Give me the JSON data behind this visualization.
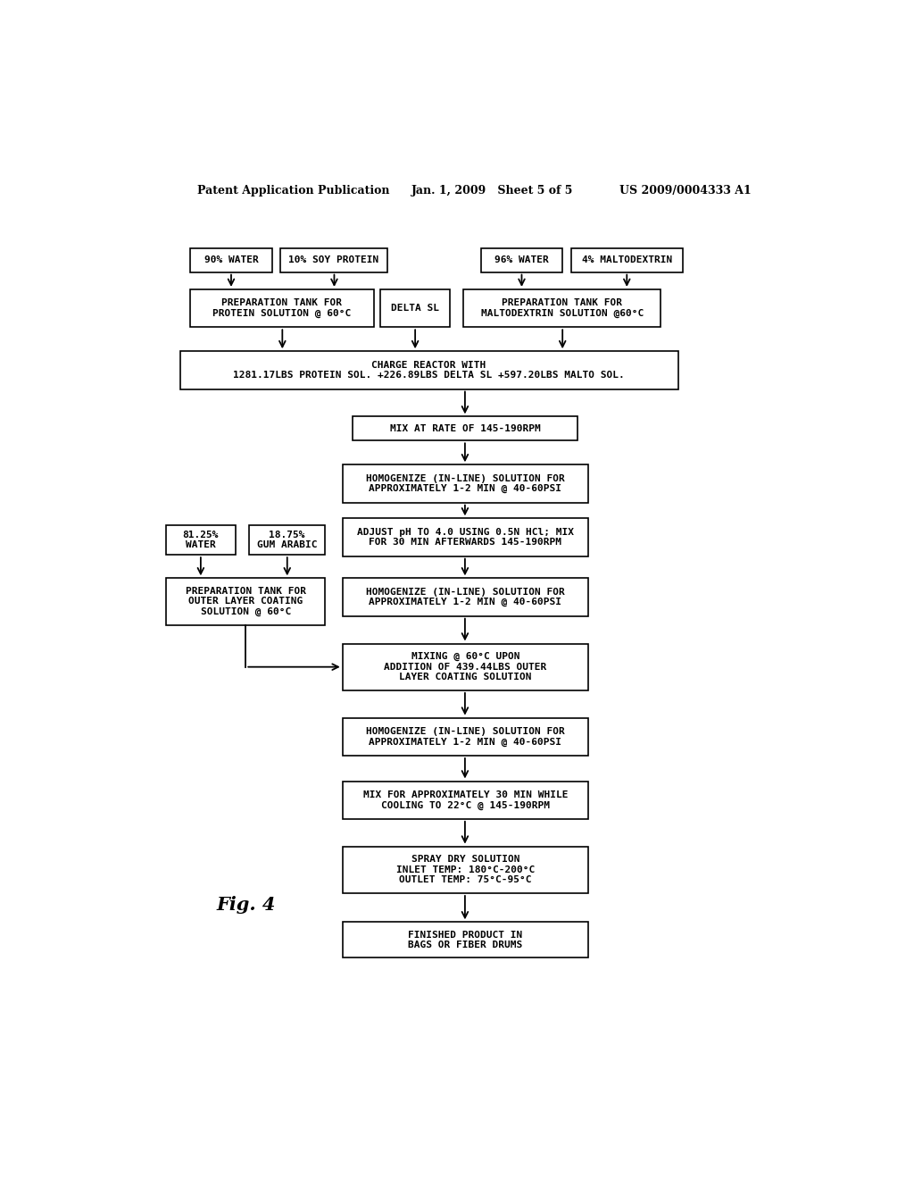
{
  "background_color": "#ffffff",
  "header_left": "Patent Application Publication",
  "header_mid": "Jan. 1, 2009   Sheet 5 of 5",
  "header_right": "US 2009/0004333 A1",
  "fig_label": "Fig. 4",
  "font_size_box": 8.0,
  "font_size_header": 9.0,
  "font_size_fig": 15.0
}
